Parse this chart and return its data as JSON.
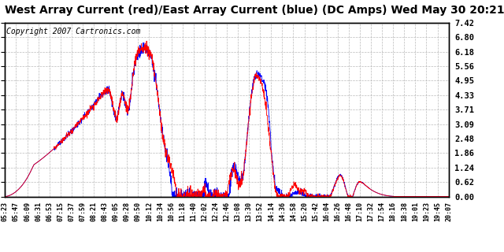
{
  "title": "West Array Current (red)/East Array Current (blue) (DC Amps) Wed May 30 20:21",
  "copyright": "Copyright 2007 Cartronics.com",
  "ylabel_right_ticks": [
    0.0,
    0.62,
    1.24,
    1.86,
    2.48,
    3.09,
    3.71,
    4.33,
    4.95,
    5.56,
    6.18,
    6.8,
    7.42
  ],
  "ylim": [
    0.0,
    7.42
  ],
  "xtick_labels": [
    "05:23",
    "05:47",
    "06:09",
    "06:31",
    "06:53",
    "07:15",
    "07:37",
    "07:59",
    "08:21",
    "08:43",
    "09:05",
    "09:28",
    "09:50",
    "10:12",
    "10:34",
    "10:56",
    "11:18",
    "11:40",
    "12:02",
    "12:24",
    "12:46",
    "13:08",
    "13:30",
    "13:52",
    "14:14",
    "14:36",
    "14:58",
    "15:20",
    "15:42",
    "16:04",
    "16:26",
    "16:48",
    "17:10",
    "17:32",
    "17:54",
    "18:16",
    "18:38",
    "19:01",
    "19:23",
    "19:45",
    "20:07"
  ],
  "bg_color": "#ffffff",
  "grid_color": "#aaaaaa",
  "line_red": "#ff0000",
  "line_blue": "#0000ff",
  "title_fontsize": 10,
  "copyright_fontsize": 7
}
